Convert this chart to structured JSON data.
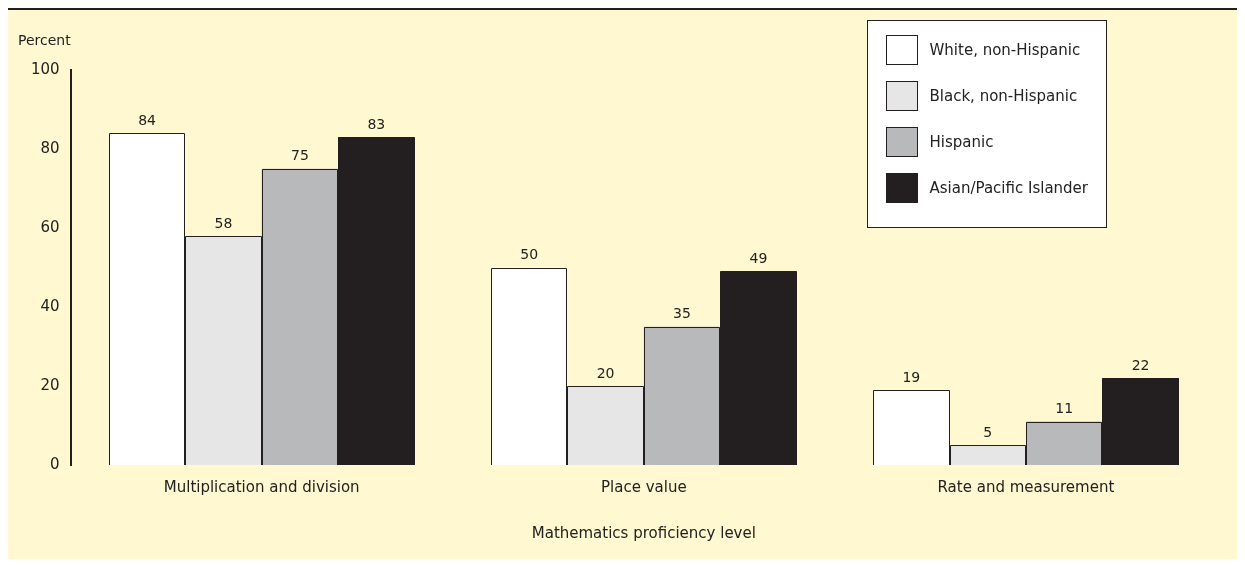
{
  "chart_data": {
    "type": "bar",
    "xlabel": "Mathematics proficiency level",
    "ylabel": "Percent",
    "categories": [
      "Multiplication and division",
      "Place value",
      "Rate and measurement"
    ],
    "series": [
      {
        "name": "White, non-Hispanic",
        "color": "#ffffff",
        "values": [
          84,
          50,
          19
        ]
      },
      {
        "name": "Black, non-Hispanic",
        "color": "#e6e6e6",
        "values": [
          58,
          20,
          5
        ]
      },
      {
        "name": "Hispanic",
        "color": "#b8b9bb",
        "values": [
          75,
          35,
          11
        ]
      },
      {
        "name": "Asian/Pacific Islander",
        "color": "#231f20",
        "values": [
          83,
          49,
          22
        ]
      }
    ],
    "ylim": [
      0,
      100
    ],
    "yticks": [
      0,
      20,
      40,
      60,
      80,
      100
    ],
    "grid": false,
    "legend": "top right",
    "data_labels": true
  }
}
